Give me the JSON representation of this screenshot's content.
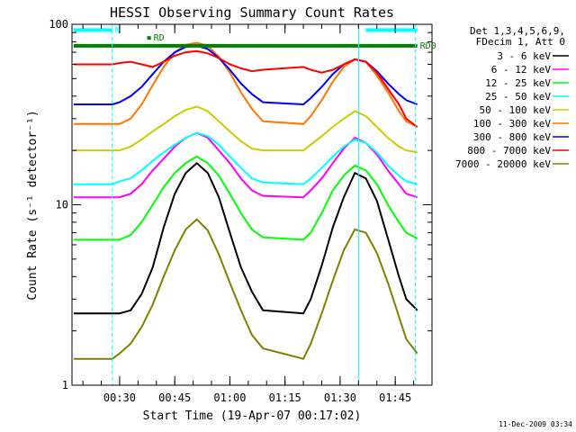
{
  "chart_data": {
    "type": "line",
    "title": "HESSI Observing Summary Count Rates",
    "xlabel": "Start Time (19-Apr-07 00:17:02)",
    "ylabel": "Count Rate (s⁻¹ detector⁻¹)",
    "y_scale": "log",
    "ylim": [
      1,
      100
    ],
    "xlim": [
      "00:17:02",
      "01:55:00"
    ],
    "x_unit": "minutes since 00:00 UT",
    "x_ticks": [
      {
        "value": 30,
        "label": "00:30"
      },
      {
        "value": 45,
        "label": "00:45"
      },
      {
        "value": 60,
        "label": "01:00"
      },
      {
        "value": 75,
        "label": "01:15"
      },
      {
        "value": 90,
        "label": "01:30"
      },
      {
        "value": 105,
        "label": "01:45"
      }
    ],
    "y_ticks": [
      {
        "value": 1,
        "label": "1"
      },
      {
        "value": 10,
        "label": "10"
      },
      {
        "value": 100,
        "label": "100"
      }
    ],
    "legend": {
      "placement": "right",
      "header": [
        "Det 1,3,4,5,6,9,",
        "FDecim 1, Att 0"
      ]
    },
    "series": [
      {
        "name": "3 - 6 keV",
        "color": "#000000",
        "x": [
          17.5,
          28,
          30,
          33,
          36,
          39,
          42,
          45,
          48,
          51,
          54,
          57,
          60,
          63,
          66,
          69,
          80,
          82,
          85,
          88,
          91,
          94,
          97,
          100,
          103,
          106,
          108,
          111
        ],
        "y": [
          2.5,
          2.5,
          2.5,
          2.6,
          3.2,
          4.5,
          7.5,
          11.5,
          15,
          17,
          15,
          11,
          7,
          4.5,
          3.3,
          2.6,
          2.5,
          3,
          4.6,
          7.5,
          11,
          15,
          14,
          10.5,
          6.5,
          4,
          3,
          2.6
        ]
      },
      {
        "name": "6 - 12 keV",
        "color": "#ff00ff",
        "x": [
          17.5,
          28,
          30,
          33,
          36,
          39,
          42,
          45,
          48,
          51,
          54,
          57,
          60,
          63,
          66,
          69,
          80,
          82,
          85,
          88,
          91,
          94,
          97,
          100,
          103,
          106,
          108,
          111
        ],
        "y": [
          11,
          11,
          11,
          11.5,
          13,
          15.5,
          18,
          21,
          23.5,
          25,
          23.5,
          20,
          17,
          14,
          12,
          11.2,
          11,
          12,
          14,
          17,
          20.5,
          23.5,
          22,
          19,
          15.5,
          13,
          11.5,
          11
        ]
      },
      {
        "name": "12 - 25 keV",
        "color": "#00ff00",
        "x": [
          17.5,
          28,
          30,
          33,
          36,
          39,
          42,
          45,
          48,
          51,
          54,
          57,
          60,
          63,
          66,
          69,
          80,
          82,
          85,
          88,
          91,
          94,
          97,
          100,
          103,
          106,
          108,
          111
        ],
        "y": [
          6.4,
          6.4,
          6.4,
          6.8,
          8,
          10,
          12.5,
          15,
          17,
          18.5,
          17,
          14.5,
          11.5,
          9,
          7.3,
          6.6,
          6.4,
          7,
          9,
          12,
          14.5,
          16.5,
          15.5,
          13,
          10,
          8,
          7,
          6.5
        ]
      },
      {
        "name": "25 - 50 keV",
        "color": "#00ffff",
        "x": [
          17.5,
          28,
          30,
          33,
          36,
          39,
          42,
          45,
          48,
          51,
          54,
          57,
          60,
          63,
          66,
          69,
          80,
          82,
          85,
          88,
          91,
          94,
          97,
          100,
          103,
          106,
          108,
          111
        ],
        "y": [
          13,
          13,
          13.5,
          14,
          15.5,
          17.5,
          19.5,
          21.5,
          23.5,
          25,
          24,
          21.5,
          18.5,
          16,
          14,
          13.3,
          13,
          14,
          16,
          18.5,
          21,
          23,
          22,
          19.5,
          16.5,
          14.5,
          13.5,
          13
        ]
      },
      {
        "name": "50 - 100 keV",
        "color": "#cccc00",
        "x": [
          17.5,
          28,
          30,
          33,
          36,
          39,
          42,
          45,
          48,
          51,
          54,
          57,
          60,
          63,
          66,
          69,
          80,
          82,
          85,
          88,
          91,
          94,
          97,
          100,
          103,
          106,
          108,
          111
        ],
        "y": [
          20,
          20,
          20,
          21,
          23,
          25.5,
          28,
          31,
          33.5,
          35,
          33,
          29,
          25.5,
          22.5,
          20.5,
          20,
          20,
          21.5,
          24,
          27,
          30,
          33,
          31,
          27,
          23.5,
          21,
          20,
          19.5
        ]
      },
      {
        "name": "100 - 300 keV",
        "color": "#ff7700",
        "x": [
          17.5,
          28,
          30,
          33,
          36,
          39,
          42,
          45,
          48,
          51,
          54,
          57,
          60,
          63,
          66,
          69,
          80,
          82,
          85,
          88,
          91,
          94,
          97,
          100,
          103,
          106,
          108,
          111
        ],
        "y": [
          28,
          28,
          28,
          30,
          36,
          46,
          58,
          70,
          77,
          79,
          76,
          66,
          54,
          42,
          34,
          29,
          28,
          31,
          38,
          48,
          58,
          64,
          62,
          52,
          42,
          33,
          29,
          27
        ]
      },
      {
        "name": "300 - 800 keV",
        "color": "#0000ff",
        "x": [
          17.5,
          28,
          30,
          33,
          36,
          39,
          42,
          45,
          48,
          51,
          54,
          57,
          60,
          63,
          66,
          69,
          80,
          82,
          85,
          88,
          91,
          94,
          97,
          100,
          103,
          106,
          108,
          111
        ],
        "y": [
          36,
          36,
          37,
          40,
          45,
          53,
          62,
          70,
          75,
          76,
          73,
          65,
          56,
          47,
          41,
          37,
          36,
          39,
          45,
          53,
          60,
          64,
          62,
          55,
          47,
          41,
          38,
          36
        ]
      },
      {
        "name": "800 - 7000 keV",
        "color": "#ff0000",
        "x": [
          17.5,
          28,
          30,
          33,
          36,
          39,
          42,
          45,
          48,
          51,
          54,
          57,
          60,
          63,
          66,
          69,
          80,
          82,
          85,
          88,
          91,
          94,
          97,
          100,
          103,
          106,
          108,
          111
        ],
        "y": [
          60,
          60,
          61,
          62,
          60,
          58,
          62,
          67,
          70,
          71,
          69,
          65,
          60,
          57,
          55,
          56,
          58,
          56,
          54,
          56,
          60,
          64,
          62,
          54,
          44,
          36,
          30,
          27
        ]
      },
      {
        "name": "7000 - 20000 keV",
        "color": "#808000",
        "x": [
          17.5,
          28,
          30,
          33,
          36,
          39,
          42,
          45,
          48,
          51,
          54,
          57,
          60,
          63,
          66,
          69,
          80,
          82,
          85,
          88,
          91,
          94,
          97,
          100,
          103,
          106,
          108,
          111
        ],
        "y": [
          1.4,
          1.4,
          1.5,
          1.7,
          2.1,
          2.8,
          4,
          5.6,
          7.3,
          8.3,
          7.2,
          5.3,
          3.7,
          2.6,
          1.9,
          1.6,
          1.4,
          1.7,
          2.5,
          3.8,
          5.6,
          7.3,
          7,
          5.4,
          3.7,
          2.4,
          1.8,
          1.5
        ]
      }
    ],
    "flag_bars": [
      {
        "label": "N",
        "color": "#00ffff",
        "segments": [
          [
            17.5,
            28
          ],
          [
            97,
            111
          ]
        ],
        "level": 93
      },
      {
        "label": "RD",
        "color": "#008000",
        "segments": [
          [
            37.5,
            38.5
          ]
        ],
        "level": 84
      },
      {
        "label": "RD0",
        "color": "#008000",
        "segments": [
          [
            17.5,
            111
          ]
        ],
        "level": 76
      }
    ],
    "vertical_markers": {
      "color": "#00ffff",
      "solid": [
        95
      ],
      "dashed": [
        28,
        110.5
      ]
    },
    "footer_timestamp": "11-Dec-2009 03:34"
  }
}
